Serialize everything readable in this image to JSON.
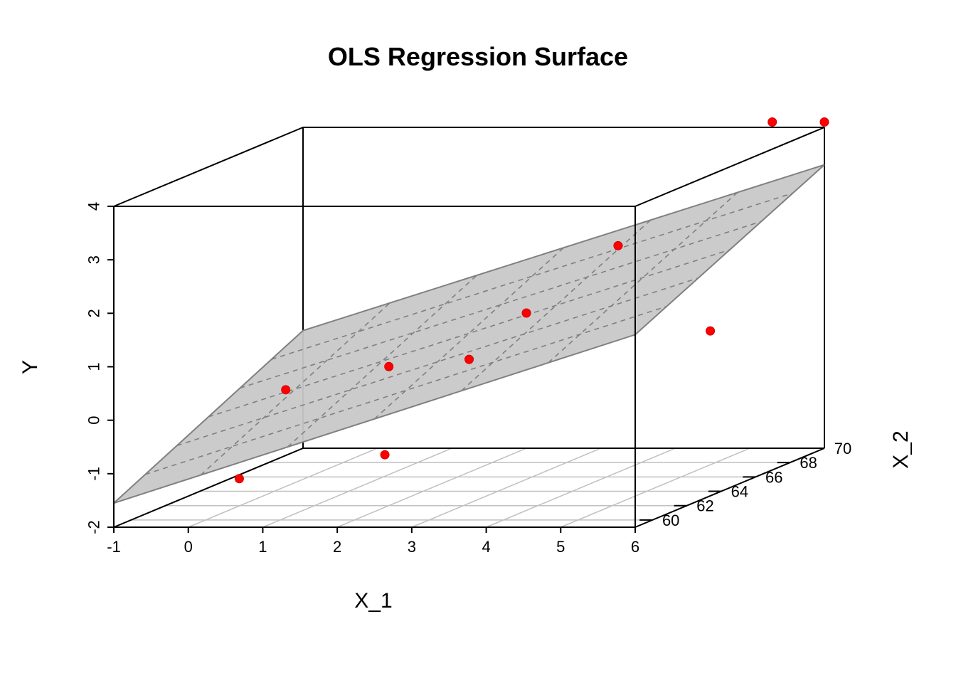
{
  "chart_data": {
    "type": "scatter",
    "subtype": "3d-scatter-with-regression-plane",
    "title": "OLS Regression Surface",
    "xlabel": "X_1",
    "ylabel": "X_2",
    "zlabel": "Y",
    "xlim": [
      -1,
      6
    ],
    "ylim": [
      59,
      70
    ],
    "zlim": [
      -2,
      4
    ],
    "x_ticks": [
      "-1",
      "0",
      "1",
      "2",
      "3",
      "4",
      "5",
      "6"
    ],
    "y_ticks": [
      "60",
      "62",
      "64",
      "66",
      "68",
      "70"
    ],
    "z_ticks": [
      "-2",
      "-1",
      "0",
      "1",
      "2",
      "3",
      "4"
    ],
    "point_color": "#ff0000",
    "plane_color": "#c8c8c8",
    "plane_edge_color": "#808080",
    "grid_color": "#c0c0c0",
    "plane": {
      "corners": [
        {
          "x": -1,
          "y": 59,
          "z": -1.55
        },
        {
          "x": 6,
          "y": 59,
          "z": 1.6
        },
        {
          "x": 6,
          "y": 70,
          "z": 3.3
        },
        {
          "x": -1,
          "y": 70,
          "z": 0.2
        }
      ]
    },
    "points": [
      {
        "x": 0.5,
        "y": 59.8,
        "z": -1.2
      },
      {
        "x": 1.6,
        "y": 63.5,
        "z": -1.25
      },
      {
        "x": 0.5,
        "y": 62.5,
        "z": 0.1
      },
      {
        "x": 2.0,
        "y": 62.0,
        "z": 0.6
      },
      {
        "x": 2.5,
        "y": 64.5,
        "z": 0.4
      },
      {
        "x": 3.5,
        "y": 63.5,
        "z": 1.4
      },
      {
        "x": 4.8,
        "y": 63.2,
        "z": 2.7
      },
      {
        "x": 6.2,
        "y": 62.5,
        "z": 1.2
      },
      {
        "x": 5.3,
        "y": 70.0,
        "z": 4.1
      },
      {
        "x": 6.0,
        "y": 70.0,
        "z": 4.1
      }
    ]
  }
}
